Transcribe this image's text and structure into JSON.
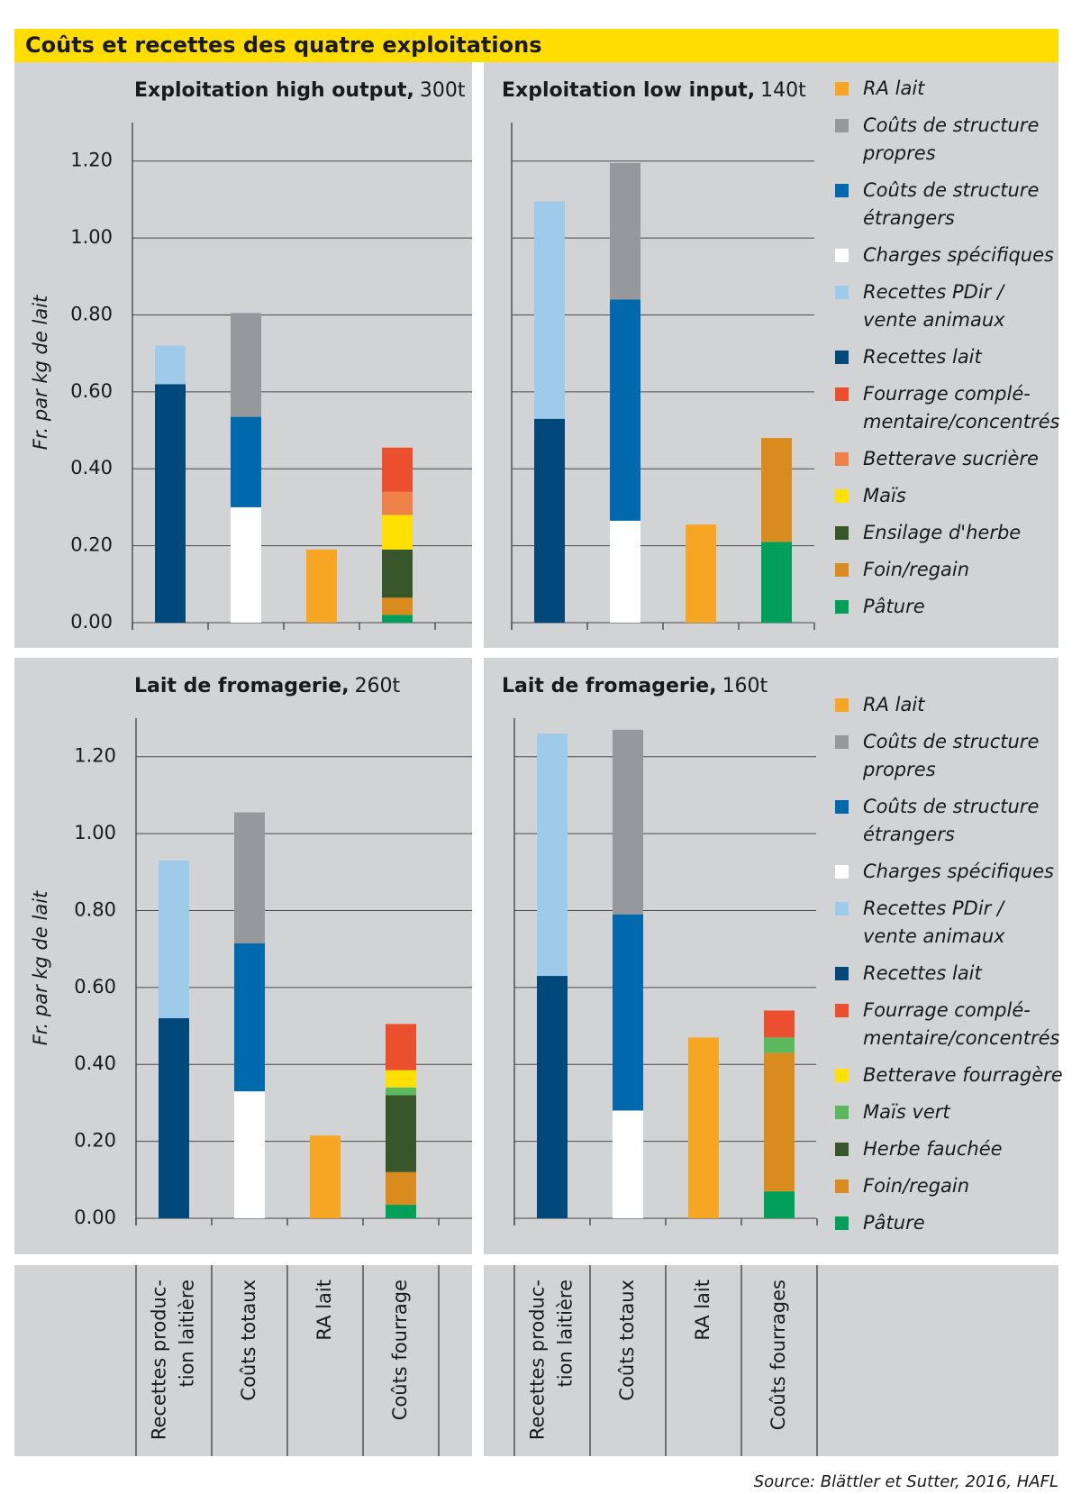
{
  "title": "Coûts et recettes des quatre exploitations",
  "source": "Source: Blättler et Sutter, 2016, HAFL",
  "chart_data": [
    {
      "type": "bar",
      "stacked": true,
      "title": "Exploitation high output,",
      "volume": "300t",
      "y_label": "Fr. par kg de lait",
      "ylim": [
        0,
        1.3
      ],
      "yticks": [
        {
          "value": 0,
          "label": "0.00"
        },
        {
          "value": 0.2,
          "label": "0.20"
        },
        {
          "value": 0.4,
          "label": "0.40"
        },
        {
          "value": 0.6,
          "label": "0.60"
        },
        {
          "value": 0.8,
          "label": "0.80"
        },
        {
          "value": 1.0,
          "label": "1.00"
        },
        {
          "value": 1.2,
          "label": "1.20"
        }
      ],
      "series": [
        {
          "values": [
            null,
            null,
            0.19,
            null
          ]
        },
        {
          "values": [
            null,
            0.27,
            null,
            null
          ]
        },
        {
          "values": [
            null,
            0.235,
            null,
            null
          ]
        },
        {
          "values": [
            null,
            0.3,
            null,
            null
          ]
        },
        {
          "values": [
            0.1,
            null,
            null,
            null
          ]
        },
        {
          "values": [
            0.62,
            null,
            null,
            null
          ]
        },
        {
          "values": [
            null,
            null,
            null,
            0.115
          ]
        },
        {
          "values": [
            null,
            null,
            null,
            0.06
          ]
        },
        {
          "values": [
            null,
            null,
            null,
            0.09
          ]
        },
        {
          "values": [
            null,
            null,
            null,
            0.125
          ]
        },
        {
          "values": [
            null,
            null,
            null,
            0.045
          ]
        },
        {
          "values": [
            null,
            null,
            null,
            0.02
          ]
        }
      ]
    },
    {
      "type": "bar",
      "stacked": true,
      "title": "Exploitation low input,",
      "volume": "140t",
      "ylim": [
        0,
        1.3
      ],
      "yticks": [
        0,
        0.2,
        0.4,
        0.6,
        0.8,
        1.0,
        1.2
      ],
      "series": [
        {
          "name": "RA lait",
          "color": "#f6a623",
          "values": [
            null,
            null,
            0.255,
            null
          ]
        },
        {
          "name": "Coûts de structure\npropres",
          "color": "#96989b",
          "values": [
            null,
            0.355,
            null,
            null
          ]
        },
        {
          "name": "Coûts de structure\nétrangers",
          "color": "#0068ad",
          "values": [
            null,
            0.575,
            null,
            null
          ]
        },
        {
          "name": "Charges spécifiques",
          "color": "#ffffff",
          "values": [
            null,
            0.265,
            null,
            null
          ]
        },
        {
          "name": "Recettes PDir /\nvente animaux",
          "color": "#9ecbea",
          "values": [
            0.565,
            null,
            null,
            null
          ]
        },
        {
          "name": "Recettes lait",
          "color": "#00497a",
          "values": [
            0.53,
            null,
            null,
            null
          ]
        },
        {
          "name": "Fourrage complé-\nmentaire/concentrés",
          "color": "#eb4f2e",
          "values": [
            null,
            null,
            null,
            null
          ]
        },
        {
          "name": "Betterave sucrière",
          "color": "#ef8148",
          "values": [
            null,
            null,
            null,
            null
          ]
        },
        {
          "name": "Maïs",
          "color": "#ffe000",
          "values": [
            null,
            null,
            null,
            null
          ]
        },
        {
          "name": "Ensilage d'herbe",
          "color": "#37562a",
          "values": [
            null,
            null,
            null,
            null
          ]
        },
        {
          "name": "Foin/regain",
          "color": "#d98b1d",
          "values": [
            null,
            null,
            null,
            0.27
          ]
        },
        {
          "name": "Pâture",
          "color": "#00a05b",
          "values": [
            null,
            null,
            null,
            0.21
          ]
        }
      ]
    },
    {
      "type": "bar",
      "stacked": true,
      "title": "Lait de fromagerie,",
      "volume": "260t",
      "y_label": "Fr. par kg de lait",
      "categories": [
        "Recettes produc-\ntion laitière",
        "Coûts totaux",
        "RA lait",
        "Coûts fourrage"
      ],
      "ylim": [
        0,
        1.3
      ],
      "yticks": [
        {
          "value": 0,
          "label": "0.00"
        },
        {
          "value": 0.2,
          "label": "0.20"
        },
        {
          "value": 0.4,
          "label": "0.40"
        },
        {
          "value": 0.6,
          "label": "0.60"
        },
        {
          "value": 0.8,
          "label": "0.80"
        },
        {
          "value": 1.0,
          "label": "1.00"
        },
        {
          "value": 1.2,
          "label": "1.20"
        }
      ],
      "series": [
        {
          "values": [
            null,
            null,
            0.215,
            null
          ]
        },
        {
          "values": [
            null,
            0.34,
            null,
            null
          ]
        },
        {
          "values": [
            null,
            0.385,
            null,
            null
          ]
        },
        {
          "values": [
            null,
            0.33,
            null,
            null
          ]
        },
        {
          "values": [
            0.41,
            null,
            null,
            null
          ]
        },
        {
          "values": [
            0.52,
            null,
            null,
            null
          ]
        },
        {
          "values": [
            null,
            null,
            null,
            0.12
          ]
        },
        {
          "values": [
            null,
            null,
            null,
            0.045
          ]
        },
        {
          "values": [
            null,
            null,
            null,
            0.02
          ]
        },
        {
          "values": [
            null,
            null,
            null,
            0.2
          ]
        },
        {
          "values": [
            null,
            null,
            null,
            0.085
          ]
        },
        {
          "values": [
            null,
            null,
            null,
            0.035
          ]
        }
      ]
    },
    {
      "type": "bar",
      "stacked": true,
      "title": "Lait de fromagerie,",
      "volume": "160t",
      "categories": [
        "Recettes produc-\ntion laitière",
        "Coûts totaux",
        "RA lait",
        "Coûts fourrages"
      ],
      "ylim": [
        0,
        1.3
      ],
      "yticks": [
        0,
        0.2,
        0.4,
        0.6,
        0.8,
        1.0,
        1.2
      ],
      "series": [
        {
          "name": "RA lait",
          "color": "#f6a623",
          "values": [
            null,
            null,
            0.47,
            null
          ]
        },
        {
          "name": "Coûts de structure\npropres",
          "color": "#96989b",
          "values": [
            null,
            0.48,
            null,
            null
          ]
        },
        {
          "name": "Coûts de structure\nétrangers",
          "color": "#0068ad",
          "values": [
            null,
            0.51,
            null,
            null
          ]
        },
        {
          "name": "Charges spécifiques",
          "color": "#ffffff",
          "values": [
            null,
            0.28,
            null,
            null
          ]
        },
        {
          "name": "Recettes PDir /\nvente animaux",
          "color": "#9ecbea",
          "values": [
            0.63,
            null,
            null,
            null
          ]
        },
        {
          "name": "Recettes lait",
          "color": "#00497a",
          "values": [
            0.63,
            null,
            null,
            null
          ]
        },
        {
          "name": "Fourrage complé-\nmentaire/concentrés",
          "color": "#eb4f2e",
          "values": [
            null,
            null,
            null,
            0.07
          ]
        },
        {
          "name": "Betterave fourragère",
          "color": "#ffe000",
          "values": [
            null,
            null,
            null,
            null
          ]
        },
        {
          "name": "Maïs vert",
          "color": "#5cb85c",
          "values": [
            null,
            null,
            null,
            0.04
          ]
        },
        {
          "name": "Herbe fauchée",
          "color": "#37562a",
          "values": [
            null,
            null,
            null,
            null
          ]
        },
        {
          "name": "Foin/regain",
          "color": "#d98b1d",
          "values": [
            null,
            null,
            null,
            0.36
          ]
        },
        {
          "name": "Pâture",
          "color": "#00a05b",
          "values": [
            null,
            null,
            null,
            0.07
          ]
        }
      ]
    }
  ]
}
